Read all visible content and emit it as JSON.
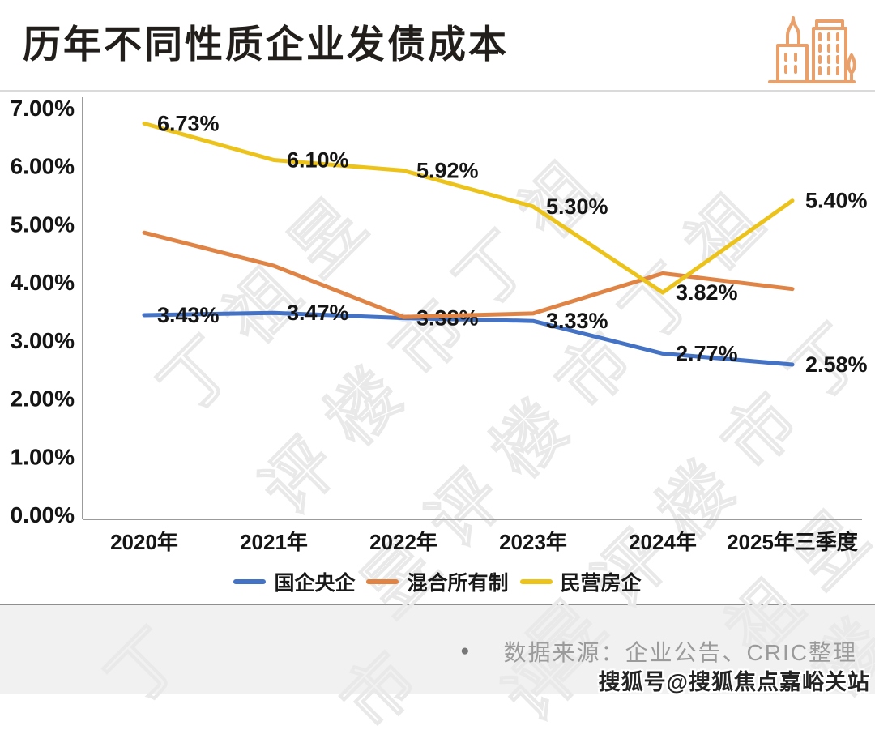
{
  "header": {
    "title": "历年不同性质企业发债成本",
    "icon": "city-buildings-icon",
    "icon_color": "#e9a06b"
  },
  "chart_data": {
    "type": "line",
    "title": "历年不同性质企业发债成本",
    "categories": [
      "2020年",
      "2021年",
      "2022年",
      "2023年",
      "2024年",
      "2025年三季度"
    ],
    "series": [
      {
        "name": "国企央企",
        "color": "#4472c4",
        "values": [
          3.43,
          3.47,
          3.38,
          3.33,
          2.77,
          2.58
        ],
        "show_labels": true
      },
      {
        "name": "混合所有制",
        "color": "#e08445",
        "values": [
          4.85,
          4.28,
          3.4,
          3.46,
          4.15,
          3.88
        ],
        "show_labels": false
      },
      {
        "name": "民营房企",
        "color": "#ecc31b",
        "values": [
          6.73,
          6.1,
          5.92,
          5.3,
          3.82,
          5.4
        ],
        "show_labels": true
      }
    ],
    "y_ticks": [
      "7.00%",
      "6.00%",
      "5.00%",
      "4.00%",
      "3.00%",
      "2.00%",
      "1.00%",
      "0.00%"
    ],
    "ylim": [
      0,
      7
    ],
    "grid": false,
    "legend_position": "bottom",
    "axis_color": "#9b9b9b",
    "label_color": "#151515"
  },
  "footer": {
    "bullet": "●",
    "source": "数据来源：企业公告、CRIC整理",
    "sohu": "搜狐号@搜狐焦点嘉峪关站"
  },
  "watermark": {
    "text": "丁祖昱评楼市"
  }
}
